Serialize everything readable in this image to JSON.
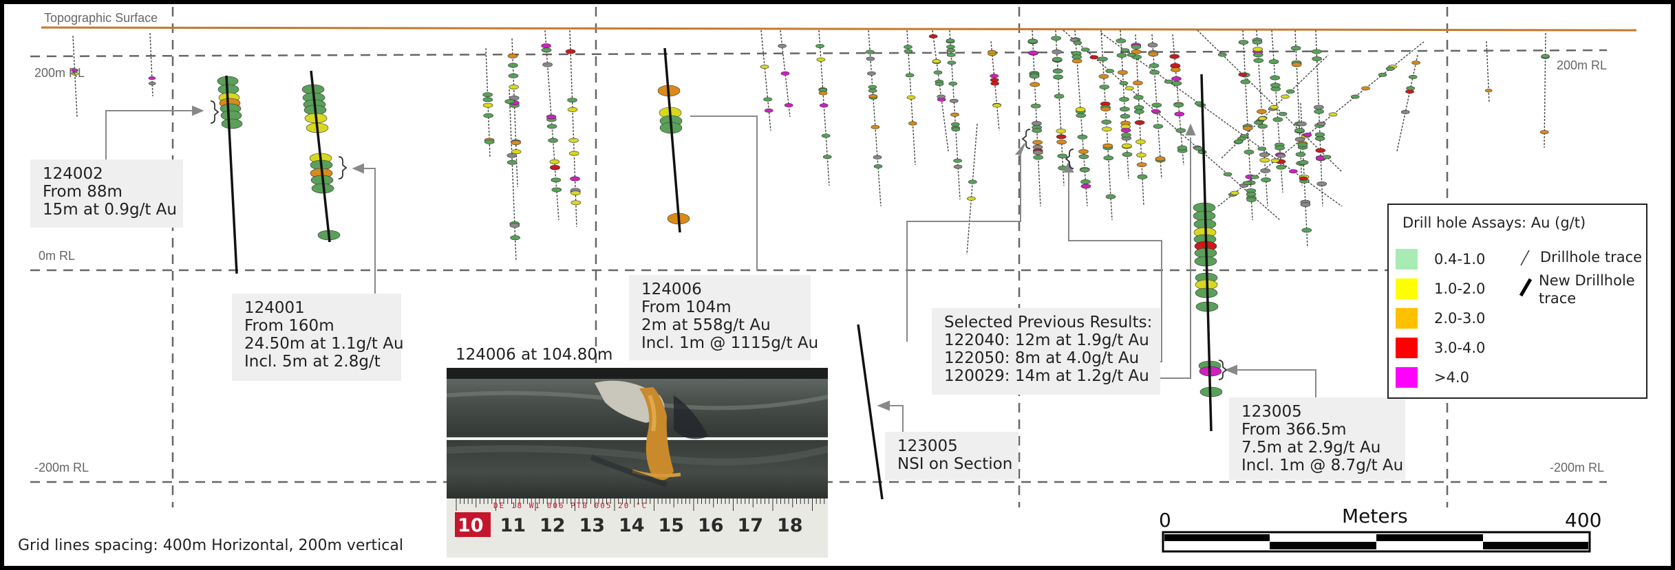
{
  "surface_label": "Topographic Surface",
  "rl_labels": {
    "left_200": "200m RL",
    "right_200": "200m RL",
    "left_0": "0m RL",
    "left_m200": "-200m RL",
    "right_m200": "-200m RL"
  },
  "callouts": {
    "h124002": {
      "hole": "124002",
      "line1": "From 88m",
      "line2": "15m at 0.9g/t Au"
    },
    "h124001": {
      "hole": "124001",
      "line1": "From 160m",
      "line2": "24.50m at 1.1g/t Au",
      "line3": "Incl. 5m at 2.8g/t"
    },
    "h124006": {
      "hole": "124006",
      "line1": "From 104m",
      "line2": "2m at 558g/t Au",
      "line3": "Incl. 1m @ 1115g/t Au"
    },
    "h123005nsi": {
      "hole": "123005",
      "line1": "NSI on Section"
    },
    "previous": {
      "title": "Selected Previous Results:",
      "r1": "122040: 12m at 1.9g/t Au",
      "r2": "122050: 8m at 4.0g/t Au",
      "r3": "120029: 14m at 1.2g/t Au"
    },
    "h123005": {
      "hole": "123005",
      "line1": "From 366.5m",
      "line2": "7.5m at 2.9g/t Au",
      "line3": "Incl. 1m @ 8.7g/t Au"
    }
  },
  "photo": {
    "title": "124006 at 104.80m",
    "ruler_small_text": "DE 18 W1 006 PTB 005 20 °C",
    "ruler_numbers": [
      "10",
      "11",
      "12",
      "13",
      "14",
      "15",
      "16",
      "17",
      "18"
    ]
  },
  "legend": {
    "title": "Drill hole Assays: Au (g/t)",
    "ranges": [
      {
        "label": "0.4-1.0",
        "color": "#a8ecb4"
      },
      {
        "label": "1.0-2.0",
        "color": "#ffff00"
      },
      {
        "label": "2.0-3.0",
        "color": "#ffc000"
      },
      {
        "label": "3.0-4.0",
        "color": "#ff0000"
      },
      {
        "label": ">4.0",
        "color": "#ff00ff"
      }
    ],
    "trace_label": "Drillhole trace",
    "new_trace_label_1": "New Drillhole",
    "new_trace_label_2": "trace"
  },
  "scale_bar": {
    "start": "0",
    "unit": "Meters",
    "end": "400"
  },
  "grid_note": "Grid lines spacing: 400m Horizontal, 200m vertical",
  "colors": {
    "surface": "#c8782a",
    "grid": "#666666",
    "assay_green": "#5aa05a",
    "assay_yellow": "#d8d820",
    "assay_orange": "#d88a1a",
    "assay_red": "#cc1a1a",
    "assay_magenta": "#d020c0",
    "assay_grey": "#888888"
  }
}
